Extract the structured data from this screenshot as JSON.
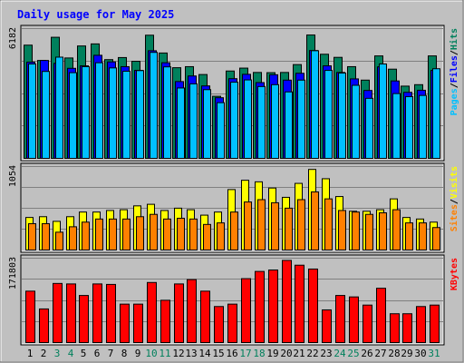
{
  "title": "Daily usage for May 2025",
  "colors": {
    "background": "#c0c0c0",
    "title": "#0000ff",
    "hits": "#00805c",
    "files": "#0000ff",
    "pages": "#00c0ff",
    "visits": "#ffff00",
    "sites": "#ff8000",
    "kbytes": "#ff0000",
    "weekend_label": "#00805c",
    "weekday_label": "#000000"
  },
  "chart_data": [
    {
      "type": "bar",
      "panel": "hits-files-pages",
      "categories": [
        "1",
        "2",
        "3",
        "4",
        "5",
        "6",
        "7",
        "8",
        "9",
        "10",
        "11",
        "12",
        "13",
        "14",
        "15",
        "16",
        "17",
        "18",
        "19",
        "20",
        "21",
        "22",
        "23",
        "24",
        "25",
        "26",
        "27",
        "28",
        "29",
        "30",
        "31"
      ],
      "weekend_days": [
        "3",
        "4",
        "10",
        "11",
        "17",
        "18",
        "24",
        "25",
        "31"
      ],
      "ymax_label": "6182",
      "ylim": [
        0,
        6182
      ],
      "legend": [
        "Hits",
        "/",
        "Files",
        "/",
        "Pages"
      ],
      "series": [
        {
          "name": "Hits",
          "values": [
            5470,
            4730,
            5850,
            4850,
            5430,
            5530,
            4770,
            4870,
            4690,
            5950,
            5090,
            4380,
            4430,
            4050,
            3000,
            4220,
            4360,
            4150,
            4140,
            4150,
            4530,
            5960,
            5030,
            4880,
            4430,
            3780,
            4950,
            4310,
            3490,
            3560,
            4950
          ]
        },
        {
          "name": "Files",
          "values": [
            4650,
            4730,
            4590,
            4350,
            4470,
            4980,
            4660,
            4430,
            4250,
            5200,
            4620,
            3710,
            3980,
            3500,
            2930,
            3850,
            4060,
            3660,
            4040,
            3780,
            4110,
            5210,
            4470,
            4150,
            3840,
            3280,
            4420,
            3740,
            3190,
            3290,
            4250
          ]
        },
        {
          "name": "Pages",
          "values": [
            4560,
            4200,
            4890,
            4140,
            4430,
            4620,
            4370,
            4210,
            4240,
            5120,
            4420,
            3400,
            3600,
            3320,
            2690,
            3680,
            3790,
            3470,
            3560,
            3210,
            3780,
            5200,
            4250,
            4120,
            3530,
            2900,
            4560,
            3130,
            2980,
            3040,
            4330
          ]
        }
      ]
    },
    {
      "type": "bar",
      "panel": "visits-sites",
      "categories": [
        "1",
        "2",
        "3",
        "4",
        "5",
        "6",
        "7",
        "8",
        "9",
        "10",
        "11",
        "12",
        "13",
        "14",
        "15",
        "16",
        "17",
        "18",
        "19",
        "20",
        "21",
        "22",
        "23",
        "24",
        "25",
        "26",
        "27",
        "28",
        "29",
        "30",
        "31"
      ],
      "ymax_label": "1054",
      "ylim": [
        0,
        1054
      ],
      "legend": [
        "Sites",
        "/",
        "Visits"
      ],
      "series": [
        {
          "name": "Visits",
          "values": [
            420,
            430,
            370,
            430,
            490,
            490,
            510,
            520,
            570,
            590,
            510,
            540,
            520,
            450,
            490,
            780,
            900,
            880,
            800,
            680,
            860,
            1040,
            920,
            690,
            500,
            500,
            520,
            660,
            420,
            400,
            360
          ]
        },
        {
          "name": "Sites",
          "values": [
            340,
            340,
            230,
            300,
            360,
            400,
            400,
            400,
            430,
            460,
            400,
            410,
            400,
            330,
            350,
            490,
            620,
            650,
            610,
            540,
            650,
            750,
            660,
            510,
            490,
            460,
            480,
            520,
            350,
            350,
            290
          ]
        }
      ]
    },
    {
      "type": "bar",
      "panel": "kbytes",
      "categories": [
        "1",
        "2",
        "3",
        "4",
        "5",
        "6",
        "7",
        "8",
        "9",
        "10",
        "11",
        "12",
        "13",
        "14",
        "15",
        "16",
        "17",
        "18",
        "19",
        "20",
        "21",
        "22",
        "23",
        "24",
        "25",
        "26",
        "27",
        "28",
        "29",
        "30",
        "31"
      ],
      "ymax_label": "171803",
      "ylim": [
        0,
        171803
      ],
      "legend": [
        "KBytes"
      ],
      "series": [
        {
          "name": "KBytes",
          "values": [
            107000,
            70000,
            123000,
            122000,
            98000,
            122000,
            121000,
            80000,
            80000,
            125000,
            88000,
            122000,
            131000,
            107000,
            75000,
            80000,
            133000,
            148000,
            151000,
            171000,
            161000,
            153000,
            68000,
            98000,
            95000,
            78000,
            113000,
            60000,
            60000,
            75000,
            78000
          ]
        }
      ]
    }
  ]
}
